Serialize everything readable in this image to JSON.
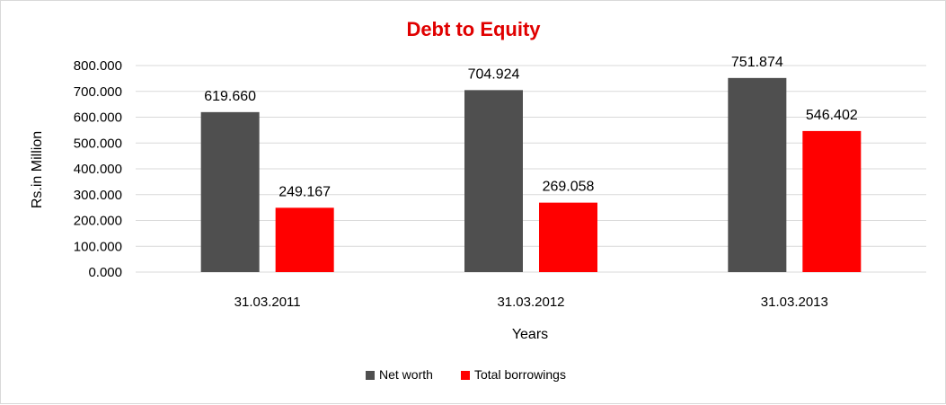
{
  "chart_data": {
    "type": "bar",
    "title": "Debt to Equity",
    "xlabel": "Years",
    "ylabel": "Rs.in Million",
    "categories": [
      "31.03.2011",
      "31.03.2012",
      "31.03.2013"
    ],
    "series": [
      {
        "name": "Net worth",
        "values": [
          619.66,
          704.924,
          751.874
        ],
        "labels": [
          "619.660",
          "704.924",
          "751.874"
        ],
        "color": "#4f4f4f"
      },
      {
        "name": "Total borrowings",
        "values": [
          249.167,
          269.058,
          546.402
        ],
        "labels": [
          "249.167",
          "269.058",
          "546.402"
        ],
        "color": "#ff0000"
      }
    ],
    "ylim": [
      0,
      800
    ],
    "yticks": [
      "0.000",
      "100.000",
      "200.000",
      "300.000",
      "400.000",
      "500.000",
      "600.000",
      "700.000",
      "800.000"
    ],
    "grid": true,
    "legend": "bottom-center",
    "title_color": "#e00000",
    "grid_color": "#d9d9d9"
  }
}
